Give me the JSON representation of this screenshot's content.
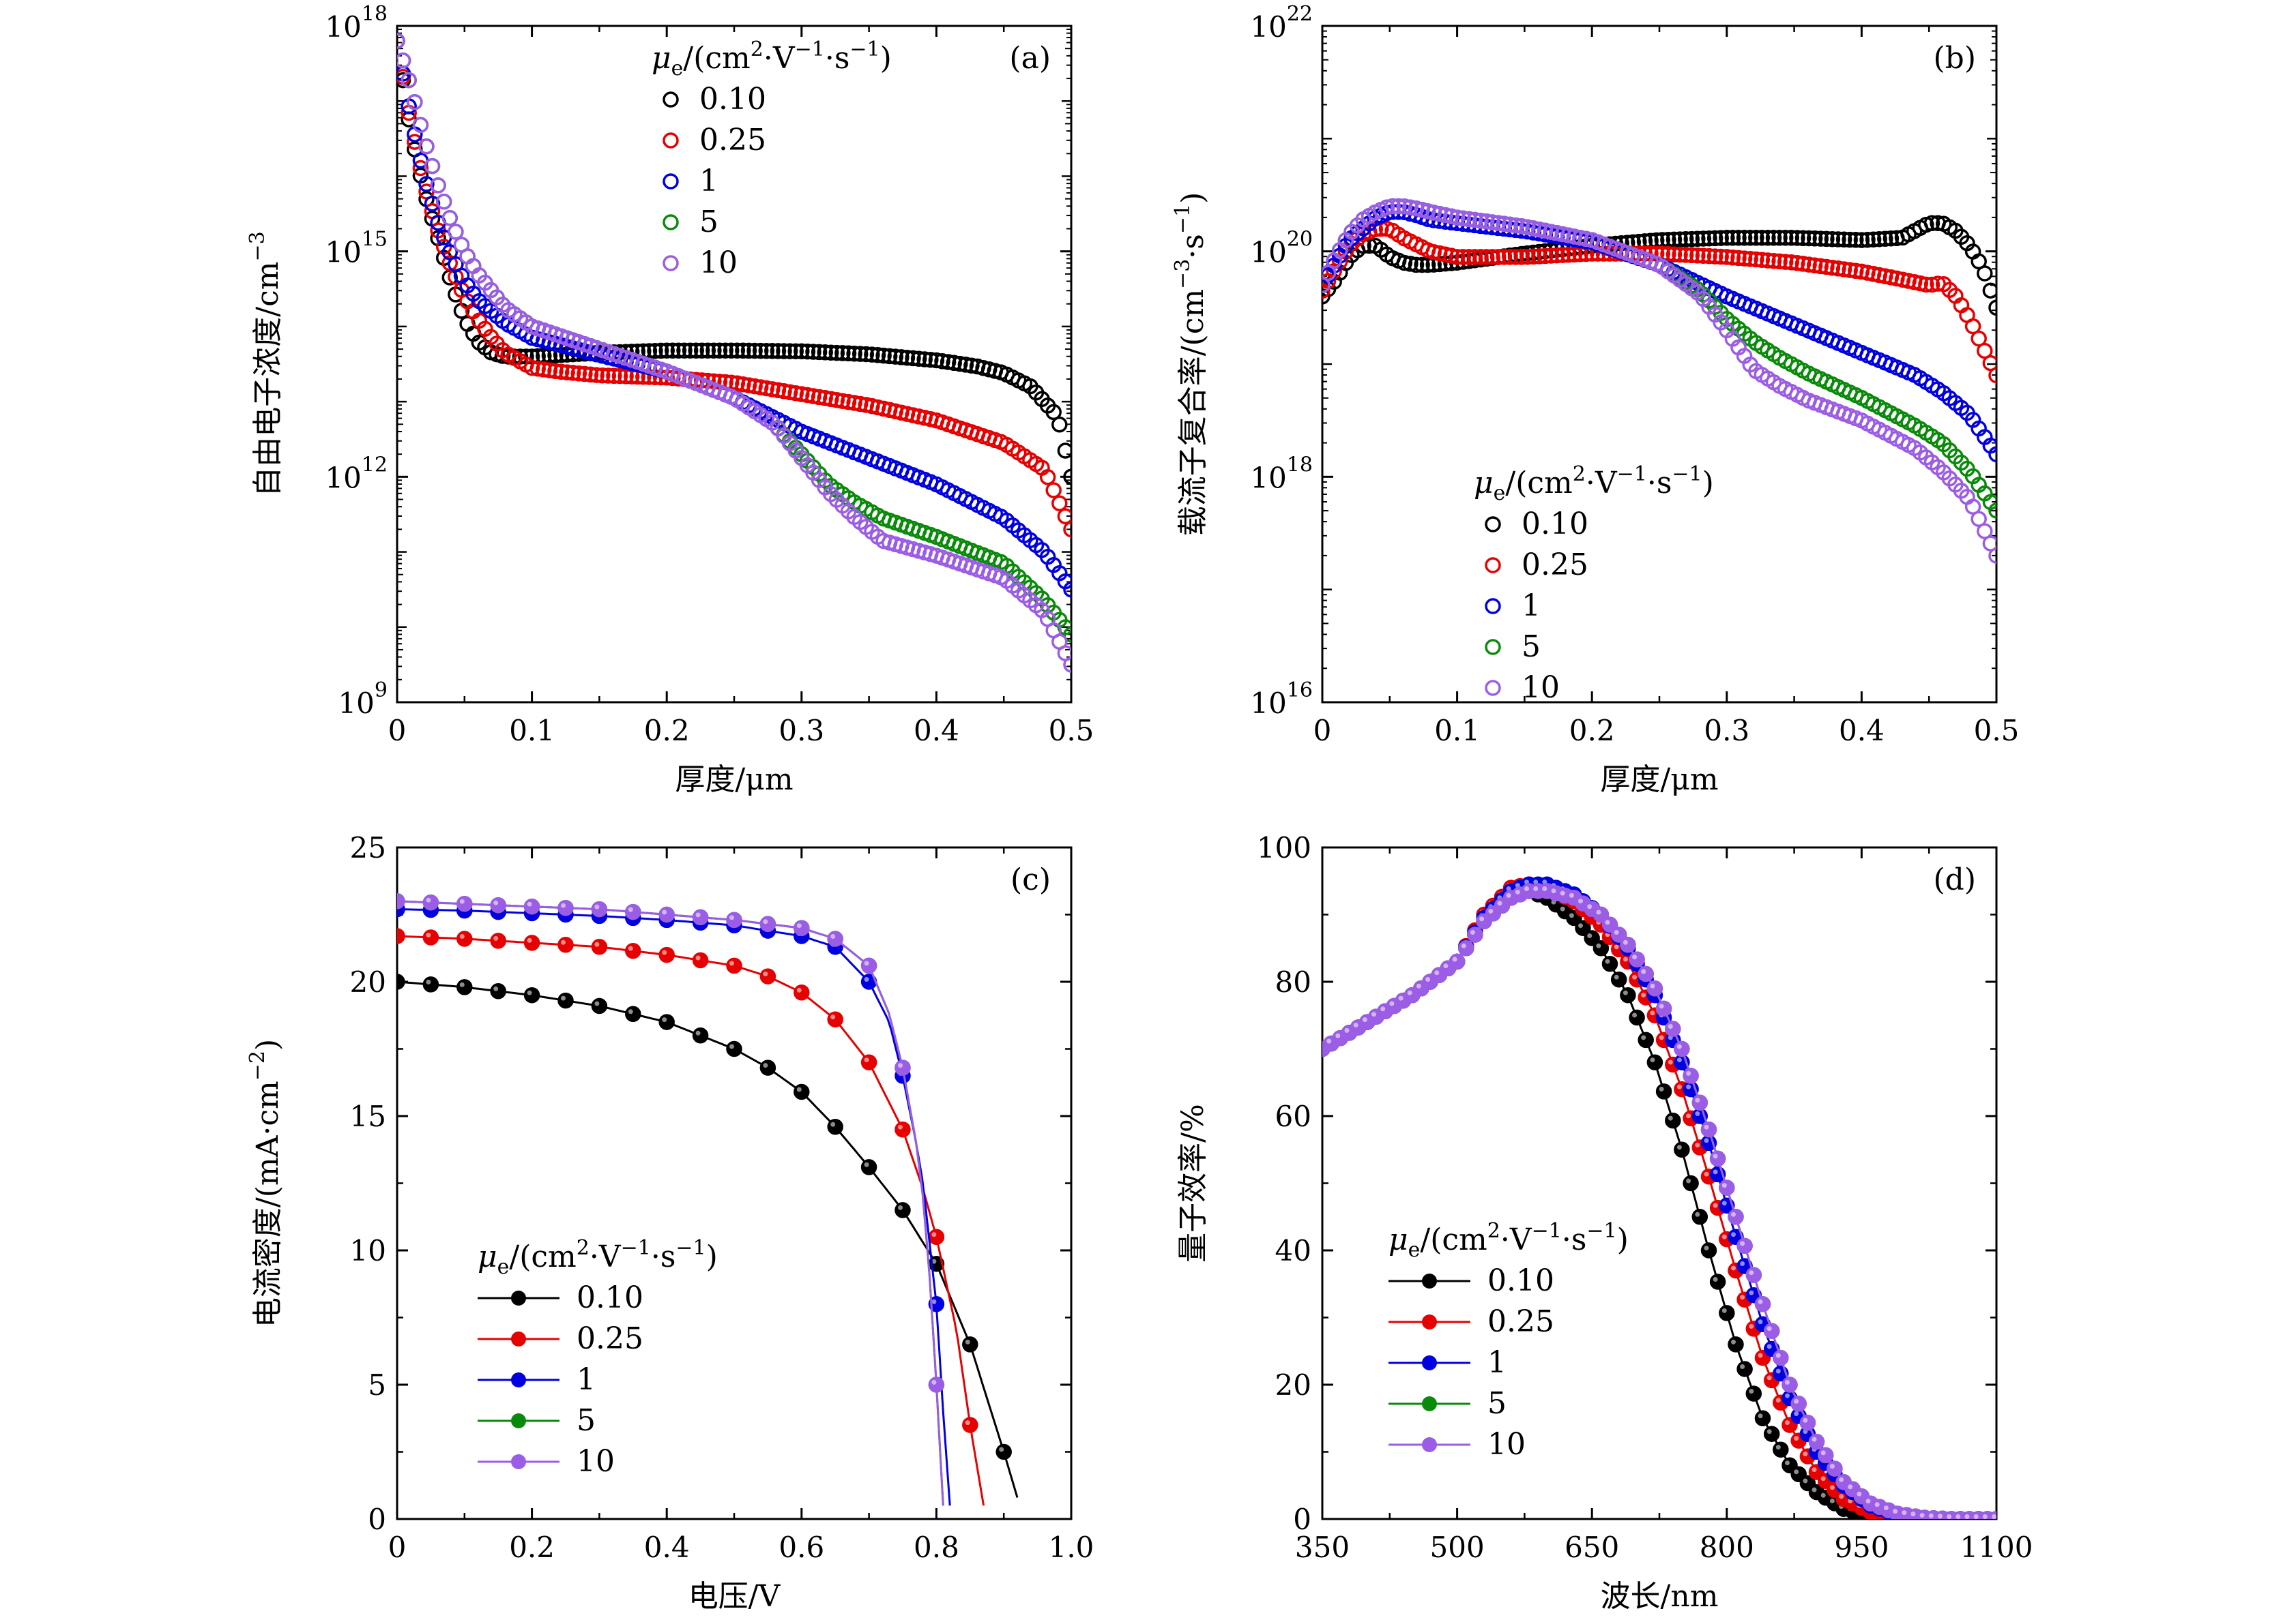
{
  "figure": {
    "legend_title_parts": {
      "mu": "μ",
      "sub": "e",
      "open": "/(cm",
      "sup2": "2",
      "dot1": "·V",
      "supm1a": "−1",
      "dot2": "·s",
      "supm1b": "−1",
      "close": ")"
    },
    "colors": {
      "0.10": "#000000",
      "0.25": "#e60000",
      "1": "#0000e0",
      "5": "#0a8a0a",
      "10": "#9b5de5"
    }
  },
  "chart_data": [
    {
      "id": "a",
      "panel_label": "(a)",
      "type": "scatter",
      "marker": "open-circle",
      "xlabel": "厚度/μm",
      "ylabel": "自由电子浓度/cm",
      "ylabel_sup": "−3",
      "xlim": [
        0,
        0.5
      ],
      "ylim_log10": [
        9,
        18
      ],
      "yscale": "log",
      "xticks": [
        "0",
        "0.1",
        "0.2",
        "0.3",
        "0.4",
        "0.5"
      ],
      "yticks": [
        {
          "base": "10",
          "exp": "9"
        },
        {
          "base": "10",
          "exp": "12"
        },
        {
          "base": "10",
          "exp": "15"
        },
        {
          "base": "10",
          "exp": "18"
        }
      ],
      "legend_placement": "top-center",
      "series": [
        {
          "name": "0.10",
          "x": [
            0,
            0.01,
            0.02,
            0.03,
            0.04,
            0.05,
            0.06,
            0.07,
            0.08,
            0.1,
            0.15,
            0.2,
            0.25,
            0.3,
            0.35,
            0.4,
            0.43,
            0.45,
            0.47,
            0.49,
            0.5
          ],
          "log10": [
            17.8,
            16.6,
            15.8,
            15.2,
            14.6,
            14.1,
            13.8,
            13.65,
            13.6,
            13.6,
            13.65,
            13.68,
            13.68,
            13.67,
            13.63,
            13.55,
            13.47,
            13.38,
            13.2,
            12.8,
            12.0
          ]
        },
        {
          "name": "0.25",
          "x": [
            0,
            0.01,
            0.02,
            0.03,
            0.04,
            0.05,
            0.06,
            0.07,
            0.08,
            0.1,
            0.12,
            0.15,
            0.2,
            0.25,
            0.3,
            0.35,
            0.4,
            0.45,
            0.48,
            0.5
          ],
          "log10": [
            17.8,
            16.7,
            15.9,
            15.3,
            14.8,
            14.4,
            14.1,
            13.85,
            13.65,
            13.45,
            13.4,
            13.35,
            13.32,
            13.25,
            13.1,
            12.95,
            12.75,
            12.45,
            12.1,
            11.3
          ]
        },
        {
          "name": "1",
          "x": [
            0,
            0.01,
            0.02,
            0.03,
            0.04,
            0.05,
            0.06,
            0.08,
            0.1,
            0.15,
            0.2,
            0.25,
            0.3,
            0.35,
            0.4,
            0.45,
            0.48,
            0.5
          ],
          "log10": [
            17.8,
            16.8,
            16.0,
            15.4,
            14.95,
            14.6,
            14.35,
            14.05,
            13.85,
            13.62,
            13.4,
            13.05,
            12.6,
            12.25,
            11.9,
            11.45,
            11.0,
            10.5
          ]
        },
        {
          "name": "5",
          "x": [
            0,
            0.01,
            0.02,
            0.03,
            0.04,
            0.05,
            0.06,
            0.08,
            0.1,
            0.15,
            0.2,
            0.25,
            0.28,
            0.3,
            0.32,
            0.34,
            0.36,
            0.4,
            0.45,
            0.48,
            0.5
          ],
          "log10": [
            17.8,
            17.2,
            16.5,
            15.9,
            15.4,
            15.0,
            14.7,
            14.25,
            14.0,
            13.7,
            13.4,
            13.05,
            12.7,
            12.3,
            11.9,
            11.65,
            11.45,
            11.2,
            10.85,
            10.35,
            9.9
          ]
        },
        {
          "name": "10",
          "x": [
            0,
            0.01,
            0.02,
            0.03,
            0.04,
            0.05,
            0.06,
            0.08,
            0.1,
            0.15,
            0.2,
            0.25,
            0.28,
            0.3,
            0.32,
            0.34,
            0.36,
            0.4,
            0.45,
            0.48,
            0.5
          ],
          "log10": [
            17.8,
            17.2,
            16.5,
            15.9,
            15.4,
            15.0,
            14.7,
            14.25,
            14.0,
            13.7,
            13.4,
            13.05,
            12.7,
            12.25,
            11.8,
            11.45,
            11.15,
            10.95,
            10.65,
            10.2,
            9.5
          ]
        }
      ]
    },
    {
      "id": "b",
      "panel_label": "(b)",
      "type": "scatter",
      "marker": "open-circle",
      "xlabel": "厚度/μm",
      "ylabel": "载流子复合率/(cm",
      "ylabel_sup": "−3",
      "ylabel_tail": "·s",
      "ylabel_sup2": "−1",
      "ylabel_close": ")",
      "xlim": [
        0,
        0.5
      ],
      "ylim_log10": [
        16,
        22
      ],
      "yscale": "log",
      "xticks": [
        "0",
        "0.1",
        "0.2",
        "0.3",
        "0.4",
        "0.5"
      ],
      "yticks": [
        {
          "base": "10",
          "exp": "16"
        },
        {
          "base": "10",
          "exp": "18"
        },
        {
          "base": "10",
          "exp": "20"
        },
        {
          "base": "10",
          "exp": "22"
        }
      ],
      "legend_placement": "bottom-center",
      "series": [
        {
          "name": "0.10",
          "x": [
            0,
            0.01,
            0.02,
            0.03,
            0.04,
            0.05,
            0.06,
            0.07,
            0.08,
            0.1,
            0.15,
            0.2,
            0.25,
            0.3,
            0.35,
            0.4,
            0.43,
            0.45,
            0.46,
            0.47,
            0.48,
            0.49,
            0.5
          ],
          "log10": [
            19.6,
            19.75,
            19.95,
            20.05,
            20.05,
            19.95,
            19.9,
            19.88,
            19.88,
            19.9,
            19.98,
            20.05,
            20.1,
            20.12,
            20.12,
            20.1,
            20.12,
            20.25,
            20.25,
            20.18,
            20.05,
            19.85,
            19.5
          ]
        },
        {
          "name": "0.25",
          "x": [
            0,
            0.01,
            0.02,
            0.03,
            0.04,
            0.05,
            0.06,
            0.08,
            0.1,
            0.15,
            0.2,
            0.25,
            0.3,
            0.35,
            0.4,
            0.43,
            0.45,
            0.46,
            0.47,
            0.48,
            0.49,
            0.5
          ],
          "log10": [
            19.65,
            19.85,
            20.05,
            20.15,
            20.2,
            20.2,
            20.12,
            20.0,
            19.95,
            19.95,
            19.98,
            19.98,
            19.95,
            19.9,
            19.82,
            19.75,
            19.7,
            19.72,
            19.6,
            19.4,
            19.15,
            18.9
          ]
        },
        {
          "name": "1",
          "x": [
            0,
            0.01,
            0.02,
            0.03,
            0.04,
            0.05,
            0.06,
            0.07,
            0.08,
            0.1,
            0.15,
            0.2,
            0.25,
            0.3,
            0.35,
            0.4,
            0.44,
            0.46,
            0.48,
            0.5
          ],
          "log10": [
            19.7,
            19.9,
            20.1,
            20.2,
            20.3,
            20.35,
            20.35,
            20.32,
            20.28,
            20.25,
            20.18,
            20.08,
            19.88,
            19.6,
            19.35,
            19.1,
            18.9,
            18.75,
            18.55,
            18.2
          ]
        },
        {
          "name": "5",
          "x": [
            0,
            0.01,
            0.02,
            0.03,
            0.04,
            0.05,
            0.06,
            0.07,
            0.08,
            0.1,
            0.15,
            0.2,
            0.25,
            0.28,
            0.3,
            0.32,
            0.34,
            0.36,
            0.4,
            0.44,
            0.46,
            0.48,
            0.5
          ],
          "log10": [
            19.7,
            19.95,
            20.15,
            20.28,
            20.35,
            20.4,
            20.4,
            20.38,
            20.35,
            20.3,
            20.22,
            20.1,
            19.88,
            19.65,
            19.4,
            19.2,
            19.05,
            18.92,
            18.7,
            18.45,
            18.3,
            18.05,
            17.7
          ]
        },
        {
          "name": "10",
          "x": [
            0,
            0.01,
            0.02,
            0.03,
            0.04,
            0.05,
            0.06,
            0.07,
            0.08,
            0.1,
            0.15,
            0.2,
            0.25,
            0.28,
            0.3,
            0.32,
            0.34,
            0.36,
            0.4,
            0.44,
            0.46,
            0.48,
            0.5
          ],
          "log10": [
            19.7,
            19.95,
            20.15,
            20.28,
            20.35,
            20.4,
            20.4,
            20.38,
            20.35,
            20.3,
            20.22,
            20.1,
            19.88,
            19.62,
            19.3,
            18.95,
            18.8,
            18.68,
            18.5,
            18.25,
            18.05,
            17.8,
            17.3
          ]
        }
      ]
    },
    {
      "id": "c",
      "panel_label": "(c)",
      "type": "line",
      "marker": "filled-circle",
      "xlabel": "电压/V",
      "ylabel": "电流密度/(mA·cm",
      "ylabel_sup": "−2",
      "ylabel_close": ")",
      "xlim": [
        0,
        1.0
      ],
      "ylim": [
        0,
        25
      ],
      "xticks": [
        "0",
        "0.2",
        "0.4",
        "0.6",
        "0.8",
        "1.0"
      ],
      "yticks": [
        "0",
        "5",
        "10",
        "15",
        "20",
        "25"
      ],
      "legend_placement": "bottom-left",
      "series": [
        {
          "name": "0.10",
          "x": [
            0,
            0.1,
            0.2,
            0.3,
            0.4,
            0.5,
            0.55,
            0.6,
            0.65,
            0.7,
            0.75,
            0.8,
            0.85,
            0.9,
            0.92
          ],
          "y": [
            20.0,
            19.8,
            19.5,
            19.1,
            18.5,
            17.5,
            16.8,
            15.9,
            14.6,
            13.1,
            11.5,
            9.5,
            6.5,
            2.5,
            0.8
          ]
        },
        {
          "name": "0.25",
          "x": [
            0,
            0.1,
            0.2,
            0.3,
            0.4,
            0.5,
            0.55,
            0.6,
            0.65,
            0.7,
            0.75,
            0.78,
            0.8,
            0.83,
            0.85,
            0.87
          ],
          "y": [
            21.7,
            21.6,
            21.45,
            21.3,
            21.0,
            20.6,
            20.2,
            19.6,
            18.6,
            17.0,
            14.5,
            12.3,
            10.5,
            7.0,
            3.5,
            0.5
          ]
        },
        {
          "name": "1",
          "x": [
            0,
            0.1,
            0.2,
            0.3,
            0.4,
            0.5,
            0.6,
            0.65,
            0.7,
            0.73,
            0.75,
            0.77,
            0.78,
            0.8,
            0.81,
            0.82
          ],
          "y": [
            22.7,
            22.65,
            22.55,
            22.45,
            22.3,
            22.1,
            21.7,
            21.3,
            20.0,
            18.5,
            16.5,
            14.0,
            12.5,
            8.0,
            4.0,
            0.5
          ]
        },
        {
          "name": "5",
          "x": [
            0,
            0.1,
            0.2,
            0.3,
            0.4,
            0.5,
            0.6,
            0.65,
            0.7,
            0.73,
            0.75,
            0.77,
            0.78,
            0.79,
            0.8,
            0.81
          ],
          "y": [
            23.0,
            22.9,
            22.8,
            22.7,
            22.5,
            22.3,
            22.0,
            21.6,
            20.6,
            18.8,
            16.8,
            14.0,
            12.0,
            9.0,
            5.0,
            0.5
          ]
        },
        {
          "name": "10",
          "x": [
            0,
            0.1,
            0.2,
            0.3,
            0.4,
            0.5,
            0.6,
            0.65,
            0.7,
            0.73,
            0.75,
            0.77,
            0.78,
            0.79,
            0.8,
            0.81
          ],
          "y": [
            23.0,
            22.9,
            22.8,
            22.7,
            22.5,
            22.3,
            22.0,
            21.6,
            20.6,
            18.8,
            16.8,
            14.0,
            12.0,
            9.0,
            5.0,
            0.5
          ]
        }
      ]
    },
    {
      "id": "d",
      "panel_label": "(d)",
      "type": "line",
      "marker": "filled-circle",
      "xlabel": "波长/nm",
      "ylabel": "量子效率/%",
      "xlim": [
        350,
        1100
      ],
      "ylim": [
        0,
        100
      ],
      "xticks": [
        "350",
        "500",
        "650",
        "800",
        "950",
        "1100"
      ],
      "yticks": [
        "0",
        "20",
        "40",
        "60",
        "80",
        "100"
      ],
      "legend_placement": "bottom-left",
      "series": [
        {
          "name": "0.10",
          "x": [
            350,
            400,
            450,
            500,
            530,
            560,
            580,
            600,
            630,
            660,
            690,
            720,
            750,
            780,
            810,
            840,
            870,
            900,
            930,
            960,
            990,
            1020,
            1050,
            1100
          ],
          "y": [
            70,
            74,
            78,
            83,
            89,
            93,
            93.5,
            92.5,
            89.5,
            85,
            78,
            68,
            55,
            40,
            26,
            15,
            8,
            4,
            1.5,
            0.5,
            0.2,
            0,
            0,
            0
          ]
        },
        {
          "name": "0.25",
          "x": [
            350,
            400,
            450,
            500,
            530,
            560,
            580,
            600,
            630,
            660,
            690,
            720,
            750,
            780,
            810,
            840,
            870,
            900,
            930,
            960,
            990,
            1020,
            1050,
            1100
          ],
          "y": [
            70,
            74,
            78,
            83,
            90,
            94,
            94.5,
            94,
            92,
            88.5,
            83,
            75,
            64,
            51,
            37,
            24,
            14,
            7,
            3,
            1,
            0.3,
            0,
            0,
            0
          ]
        },
        {
          "name": "1",
          "x": [
            350,
            400,
            450,
            500,
            530,
            560,
            580,
            600,
            630,
            660,
            690,
            720,
            750,
            780,
            810,
            840,
            870,
            900,
            930,
            960,
            990,
            1020,
            1050,
            1100
          ],
          "y": [
            70,
            74,
            78,
            83,
            89.5,
            93.5,
            94.5,
            94.5,
            93,
            90,
            85,
            78,
            68,
            56,
            42,
            29,
            18,
            10,
            5,
            2,
            0.6,
            0.1,
            0,
            0
          ]
        },
        {
          "name": "5",
          "x": [
            350,
            400,
            450,
            500,
            530,
            560,
            580,
            600,
            630,
            660,
            690,
            720,
            750,
            780,
            810,
            840,
            870,
            900,
            930,
            960,
            990,
            1020,
            1050,
            1100
          ],
          "y": [
            70,
            74,
            78,
            83,
            89,
            92.5,
            93.5,
            93.5,
            92.5,
            90,
            85.5,
            79,
            70,
            58,
            45,
            32,
            20,
            11.5,
            5.5,
            2.3,
            0.8,
            0.2,
            0,
            0
          ]
        },
        {
          "name": "10",
          "x": [
            350,
            400,
            450,
            500,
            530,
            560,
            580,
            600,
            630,
            660,
            690,
            720,
            750,
            780,
            810,
            840,
            870,
            900,
            930,
            960,
            990,
            1020,
            1050,
            1100
          ],
          "y": [
            70,
            74,
            78,
            83,
            89,
            92.5,
            93.5,
            93.5,
            92.5,
            90,
            85.5,
            79,
            70,
            58,
            45,
            32,
            20,
            11.5,
            5.5,
            2.3,
            0.8,
            0.2,
            0,
            0
          ]
        }
      ]
    }
  ]
}
